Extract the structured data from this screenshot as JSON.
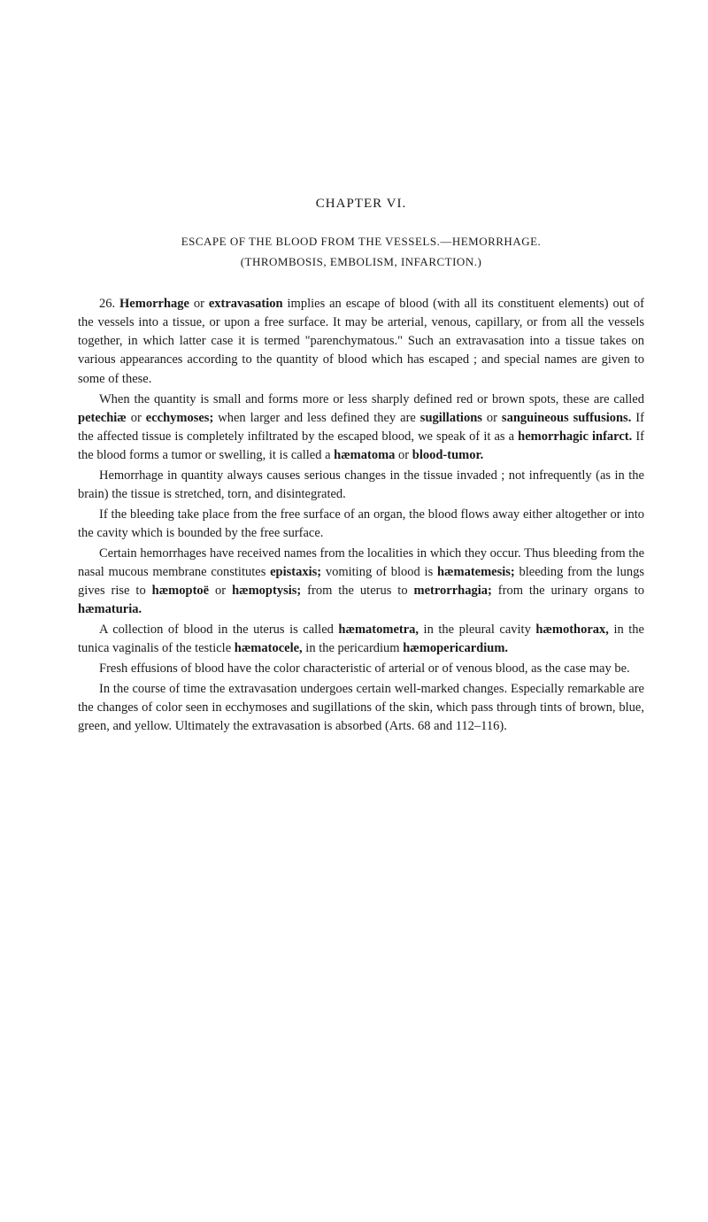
{
  "chapter_heading": "CHAPTER VI.",
  "title_line1": "ESCAPE OF THE BLOOD FROM THE VESSELS.—HEMORRHAGE.",
  "title_line2": "(THROMBOSIS, EMBOLISM, INFARCTION.)",
  "paragraphs": {
    "p1_pre": "26. ",
    "p1_b1": "Hemorrhage",
    "p1_mid1": " or ",
    "p1_b2": "extravasation",
    "p1_post": " implies an escape of blood (with all its constituent elements) out of the vessels into a tissue, or upon a free surface. It may be arterial, venous, capillary, or from all the vessels together, in which latter case it is termed \"parenchymatous.\" Such an extravasation into a tissue takes on various appearances according to the quantity of blood which has escaped ; and special names are given to some of these.",
    "p2_pre": "When the quantity is small and forms more or less sharply defined red or brown spots, these are called ",
    "p2_b1": "petechiæ",
    "p2_mid1": " or ",
    "p2_b2": "ecchymoses;",
    "p2_mid2": " when larger and less defined they are ",
    "p2_b3": "sugillations",
    "p2_mid3": " or ",
    "p2_b4": "sanguineous suffusions.",
    "p2_mid4": " If the affected tissue is completely infiltrated by the escaped blood, we speak of it as a ",
    "p2_b5": "hemorrhagic infarct.",
    "p2_mid5": " If the blood forms a tumor or swelling, it is called a ",
    "p2_b6": "hæmatoma",
    "p2_mid6": " or ",
    "p2_b7": "blood-tumor.",
    "p3": "Hemorrhage in quantity always causes serious changes in the tissue invaded ; not infrequently (as in the brain) the tissue is stretched, torn, and disintegrated.",
    "p4": "If the bleeding take place from the free surface of an organ, the blood flows away either altogether or into the cavity which is bounded by the free surface.",
    "p5_pre": "Certain hemorrhages have received names from the localities in which they occur. Thus bleeding from the nasal mucous membrane constitutes ",
    "p5_b1": "epistaxis;",
    "p5_mid1": " vomiting of blood is ",
    "p5_b2": "hæmatemesis;",
    "p5_mid2": " bleeding from the lungs gives rise to ",
    "p5_b3": "hæmoptoë",
    "p5_mid3": " or ",
    "p5_b4": "hæmoptysis;",
    "p5_mid4": " from the uterus to ",
    "p5_b5": "metrorrhagia;",
    "p5_mid5": " from the urinary organs to ",
    "p5_b6": "hæmaturia.",
    "p6_pre": "A collection of blood in the uterus is called ",
    "p6_b1": "hæmatometra,",
    "p6_mid1": " in the pleural cavity ",
    "p6_b2": "hæmothorax,",
    "p6_mid2": " in the tunica vaginalis of the testicle ",
    "p6_b3": "hæmatocele,",
    "p6_mid3": " in the pericardium ",
    "p6_b4": "hæmopericardium.",
    "p7": "Fresh effusions of blood have the color characteristic of arterial or of venous blood, as the case may be.",
    "p8": "In the course of time the extravasation undergoes certain well-marked changes. Especially remarkable are the changes of color seen in ecchymoses and sugillations of the skin, which pass through tints of brown, blue, green, and yellow. Ultimately the extravasation is absorbed (Arts. 68 and 112–116)."
  }
}
